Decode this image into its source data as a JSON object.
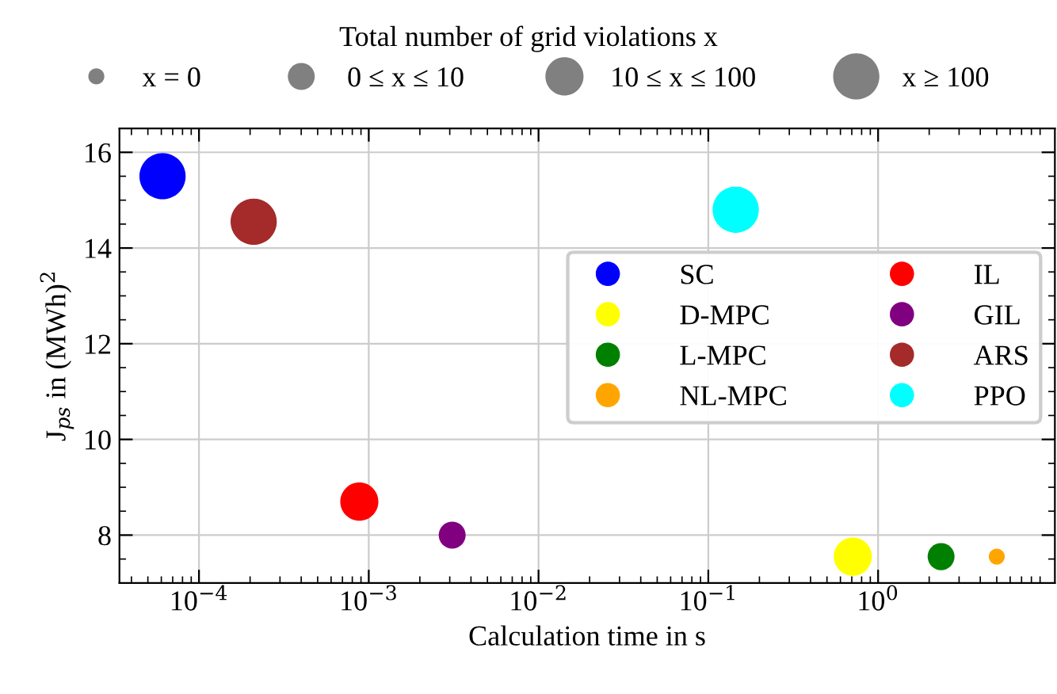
{
  "chart_data": {
    "type": "bubble",
    "xlabel": "Calculation time in s",
    "ylabel": "J$_{ps}$ in (MWh)$^{2}$",
    "legend_title": "Total number of grid violations x",
    "log": "x",
    "xlim": [
      3.4e-05,
      11
    ],
    "ylim": [
      7.0,
      16.5
    ],
    "xticks": [
      {
        "value": 0.0001,
        "label": "10$^{−4}$"
      },
      {
        "value": 0.001,
        "label": "10$^{−3}$"
      },
      {
        "value": 0.01,
        "label": "10$^{−2}$"
      },
      {
        "value": 0.1,
        "label": "10$^{−1}$"
      },
      {
        "value": 1,
        "label": "10$^{0}$"
      }
    ],
    "yticks": [
      8,
      10,
      12,
      14,
      16
    ],
    "grid": true,
    "legend": "right",
    "size_legend": [
      {
        "value": 0.12,
        "label": "x = 0"
      },
      {
        "value": 0.34,
        "label": "0 ≤ x ≤ 10"
      },
      {
        "value": 0.68,
        "label": "10 ≤ x ≤ 100"
      },
      {
        "value": 1,
        "label": "x ≥ 100"
      }
    ],
    "series": [
      {
        "name": "SC",
        "color": "#0000ff",
        "x": [
          6.1e-05
        ],
        "values": [
          15.5
        ],
        "sizes": [
          1
        ]
      },
      {
        "name": "D-MPC",
        "color": "#ffff00",
        "x": [
          0.71
        ],
        "values": [
          7.55
        ],
        "sizes": [
          0.68
        ]
      },
      {
        "name": "L-MPC",
        "color": "#008000",
        "x": [
          2.35
        ],
        "values": [
          7.55
        ],
        "sizes": [
          0.34
        ]
      },
      {
        "name": "NL-MPC",
        "color": "#ffa500",
        "x": [
          5.0
        ],
        "values": [
          7.55
        ],
        "sizes": [
          0.12
        ]
      },
      {
        "name": "IL",
        "color": "#ff0000",
        "x": [
          0.00088
        ],
        "values": [
          8.7
        ],
        "sizes": [
          0.68
        ]
      },
      {
        "name": "GIL",
        "color": "#800080",
        "x": [
          0.0031
        ],
        "values": [
          8.0
        ],
        "sizes": [
          0.34
        ]
      },
      {
        "name": "ARS",
        "color": "#a52a2a",
        "x": [
          0.00021
        ],
        "values": [
          14.55
        ],
        "sizes": [
          1
        ]
      },
      {
        "name": "PPO",
        "color": "#00ffff",
        "x": [
          0.145
        ],
        "values": [
          14.8
        ],
        "sizes": [
          1
        ]
      }
    ]
  }
}
